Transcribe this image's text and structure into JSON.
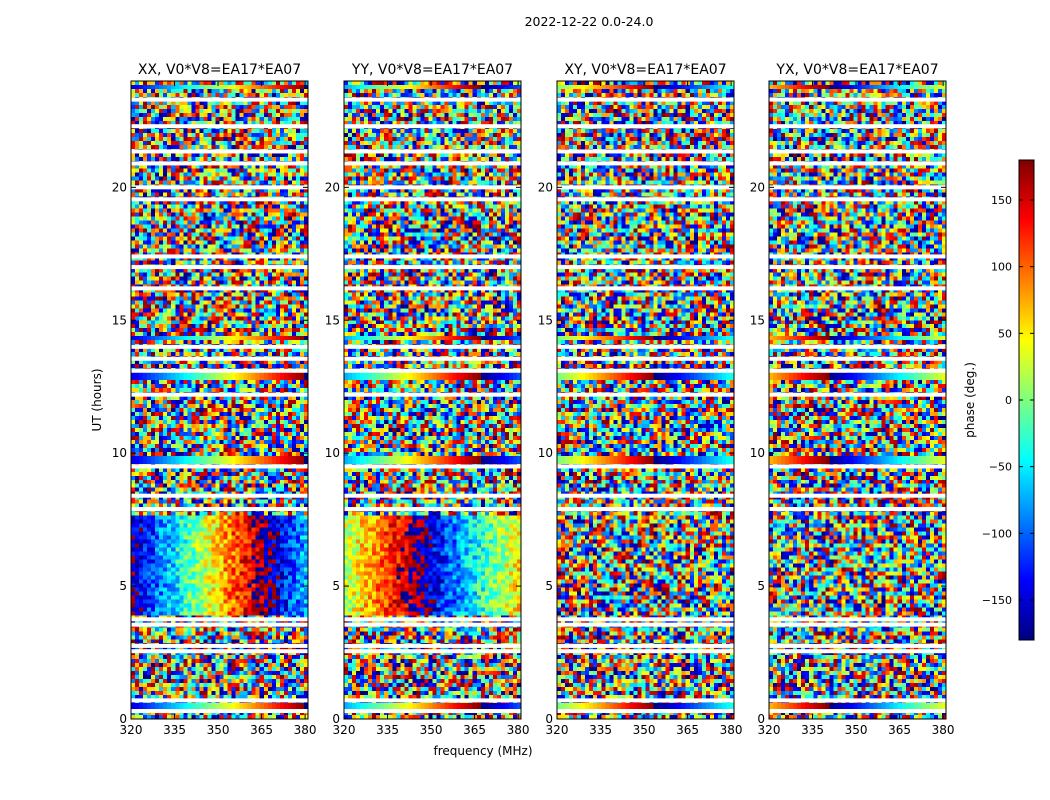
{
  "chart_data": {
    "type": "heatmap",
    "suptitle": "2022-12-22 0.0-24.0",
    "xlabel": "frequency (MHz)",
    "ylabel": "UT (hours)",
    "xlim": [
      320,
      381
    ],
    "ylim": [
      0,
      24
    ],
    "xticks": [
      320,
      335,
      350,
      365,
      380
    ],
    "yticks": [
      0,
      5,
      10,
      15,
      20
    ],
    "panels": [
      {
        "title": "XX, V0*V8=EA17*EA07",
        "coherent_band": "phase wraps smoothly across band 3-8 UT"
      },
      {
        "title": "YY, V0*V8=EA17*EA07",
        "coherent_band": "strong coherent phase 3-8 UT"
      },
      {
        "title": "XY, V0*V8=EA17*EA07",
        "coherent_band": "mostly noise-like"
      },
      {
        "title": "YX, V0*V8=EA17*EA07",
        "coherent_band": "mostly noise-like"
      }
    ],
    "blank_rows_ut": [
      0.3,
      0.7,
      2.55,
      2.75,
      3.55,
      3.75,
      7.9,
      8.4,
      9.5,
      12.2,
      13.1,
      13.55,
      14.0,
      16.2,
      17.0,
      17.4,
      19.55,
      20.0,
      20.9,
      21.35,
      22.3,
      23.3
    ],
    "colorbar": {
      "label": "phase (deg.)",
      "range": [
        -180,
        180
      ],
      "ticks": [
        -150,
        -100,
        -50,
        0,
        50,
        100,
        150
      ],
      "tick_labels": [
        "−150",
        "−100",
        "−50",
        "0",
        "50",
        "100",
        "150"
      ],
      "colormap": "jet",
      "colors": [
        "#00007f",
        "#0000ff",
        "#007fff",
        "#00ffff",
        "#7fff7f",
        "#ffff00",
        "#ff7f00",
        "#ff0000",
        "#7f0000"
      ]
    }
  }
}
